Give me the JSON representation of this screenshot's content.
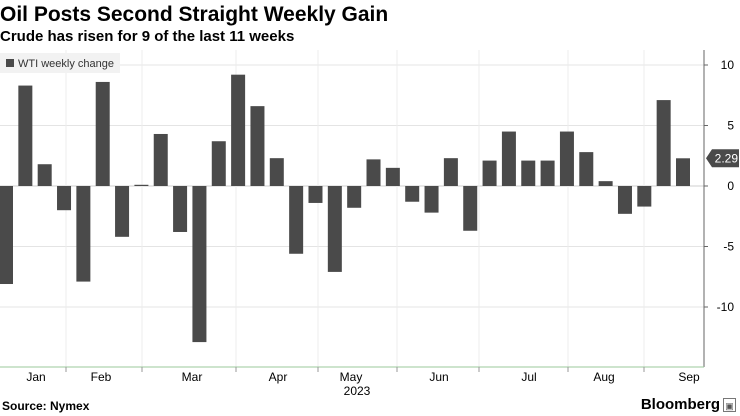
{
  "chart_data": {
    "type": "bar",
    "title": "Oil Posts Second Straight Weekly Gain",
    "subtitle": "Crude has risen for 9 of the last 11 weeks",
    "legend": [
      "WTI weekly change"
    ],
    "legend_position": "top-left",
    "x_ticks": [
      "Jan",
      "Feb",
      "Mar",
      "Apr",
      "May",
      "Jun",
      "Jul",
      "Aug",
      "Sep"
    ],
    "x_year_label": "2023",
    "y_ticks": [
      10,
      5,
      0,
      -5,
      -10
    ],
    "ylim": [
      -14.7,
      11.5
    ],
    "last_value_label": "2.29",
    "source": "Source: Nymex",
    "brand": "Bloomberg",
    "bar_color": "#4a4a4a",
    "grid": true,
    "series": [
      {
        "name": "WTI weekly change",
        "values": [
          -8.1,
          8.3,
          1.8,
          -2.0,
          -7.9,
          8.6,
          -4.2,
          0.1,
          4.3,
          -3.8,
          -12.9,
          3.7,
          9.2,
          6.6,
          2.3,
          -5.6,
          -1.4,
          -7.1,
          -1.8,
          2.2,
          1.5,
          -1.3,
          -2.2,
          2.3,
          -3.7,
          2.1,
          4.5,
          2.1,
          2.1,
          4.5,
          2.8,
          0.4,
          -2.3,
          -1.7,
          7.1,
          2.29
        ]
      }
    ]
  }
}
